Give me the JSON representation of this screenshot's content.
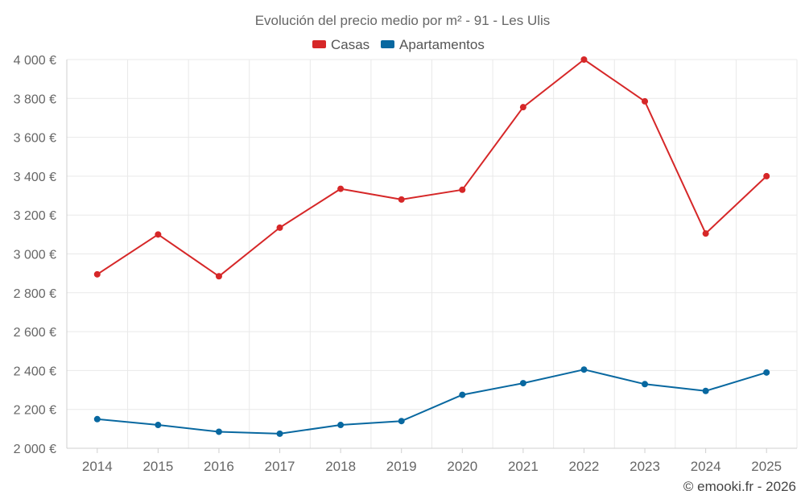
{
  "chart_data": {
    "type": "line",
    "title": "Evolución del precio medio por m² - 91 - Les Ulis",
    "categories": [
      "2014",
      "2015",
      "2016",
      "2017",
      "2018",
      "2019",
      "2020",
      "2021",
      "2022",
      "2023",
      "2024",
      "2025"
    ],
    "series": [
      {
        "name": "Casas",
        "color": "#d62728",
        "values": [
          2895,
          3100,
          2885,
          3135,
          3335,
          3280,
          3330,
          3755,
          4000,
          3785,
          3105,
          3400
        ]
      },
      {
        "name": "Apartamentos",
        "color": "#0868a0",
        "values": [
          2150,
          2120,
          2085,
          2075,
          2120,
          2140,
          2275,
          2335,
          2405,
          2330,
          2295,
          2390
        ]
      }
    ],
    "ylim": [
      2000,
      4000
    ],
    "yticks": [
      2000,
      2200,
      2400,
      2600,
      2800,
      3000,
      3200,
      3400,
      3600,
      3800,
      4000
    ],
    "ytick_labels": [
      "2 000 €",
      "2 200 €",
      "2 400 €",
      "2 600 €",
      "2 800 €",
      "3 000 €",
      "3 200 €",
      "3 400 €",
      "3 600 €",
      "3 800 €",
      "4 000 €"
    ],
    "legend_position": "top-center",
    "grid": true,
    "credit": "© emooki.fr - 2026"
  }
}
